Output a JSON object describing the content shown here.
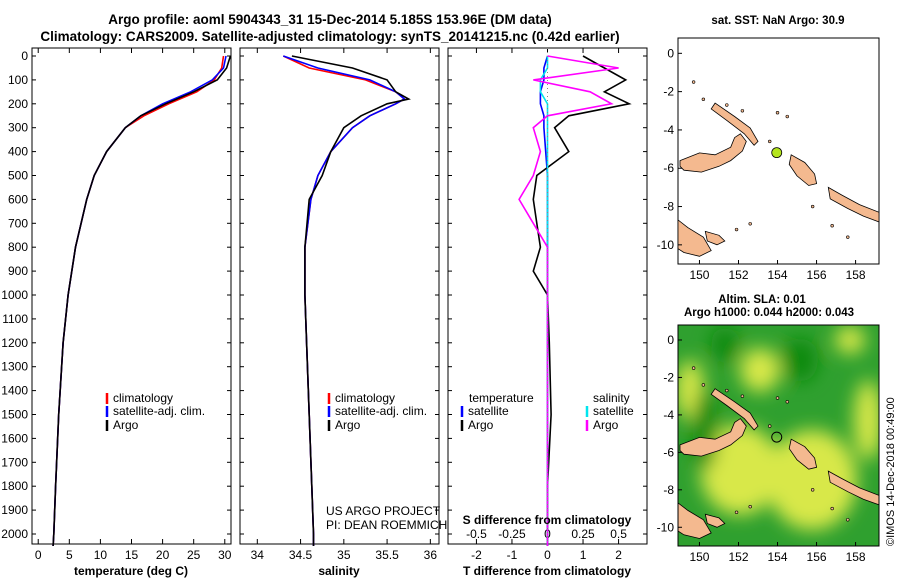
{
  "figure": {
    "title_line1": "Argo profile: aoml 5904343_31 15-Dec-2014 5.185S 153.96E (DM data)",
    "title_line2": "Climatology: CARS2009. Satellite-adjusted climatology: synTS_20141215.nc (0.42d earlier)",
    "credit": "©IMOS 14-Dec-2018 00:49:00",
    "project_line1": "US ARGO PROJECT",
    "project_line2": "PI: DEAN ROEMMICH"
  },
  "colors": {
    "climatology": "#ff0000",
    "satellite": "#0000ff",
    "argo": "#000000",
    "sat_salinity": "#00e5ee",
    "argo_salinity": "#ff00ff",
    "land": "#f4b98f",
    "sla_green": "#2fa02f",
    "sla_yellow": "#d8e84a",
    "marker": "#b4e51e"
  },
  "legends": {
    "temp": [
      "climatology",
      "satellite-adj. clim.",
      "Argo"
    ],
    "sal": [
      "climatology",
      "satellite-adj. clim.",
      "Argo"
    ],
    "diff_t_head": "temperature",
    "diff_s_head": "salinity",
    "diff_t": [
      "satellite",
      "Argo"
    ],
    "diff_s": [
      "satellite",
      "Argo"
    ]
  },
  "maps": {
    "top_title": "sat. SST: NaN Argo: 30.9",
    "bottom_title1": "Altim. SLA: 0.01",
    "bottom_title2": "Argo h1000: 0.044 h2000: 0.043",
    "lon_ticks": [
      "150",
      "152",
      "154",
      "156",
      "158"
    ],
    "lat_ticks": [
      "0",
      "-2",
      "-4",
      "-6",
      "-8",
      "-10"
    ],
    "profile_location": {
      "lon": 153.96,
      "lat": -5.185
    }
  },
  "chart_data": [
    {
      "type": "line",
      "name": "temperature",
      "xlabel": "temperature (deg C)",
      "ylabel": "",
      "xlim": [
        -1,
        31
      ],
      "ylim": [
        2100,
        0
      ],
      "x_ticks": [
        "0",
        "5",
        "10",
        "15",
        "20",
        "25",
        "30"
      ],
      "y_ticks": [
        "0",
        "100",
        "200",
        "300",
        "400",
        "500",
        "600",
        "700",
        "800",
        "900",
        "1000",
        "1100",
        "1200",
        "1300",
        "1400",
        "1500",
        "1600",
        "1700",
        "1800",
        "1900",
        "2000"
      ],
      "depth": [
        0,
        50,
        100,
        150,
        200,
        250,
        300,
        400,
        500,
        600,
        800,
        1000,
        1200,
        1500,
        1800,
        2000,
        2050
      ],
      "series": [
        {
          "name": "climatology",
          "values": [
            29.8,
            29.5,
            28.3,
            25.5,
            21.0,
            17.0,
            14.0,
            11.0,
            9.0,
            7.8,
            6.0,
            4.8,
            4.0,
            3.3,
            2.8,
            2.5,
            2.4
          ]
        },
        {
          "name": "satellite-adj. clim.",
          "values": [
            30.2,
            29.8,
            28.0,
            24.5,
            20.0,
            16.5,
            14.0,
            11.0,
            9.0,
            7.8,
            6.0,
            4.8,
            4.0,
            3.3,
            2.8,
            2.5,
            2.4
          ]
        },
        {
          "name": "Argo",
          "values": [
            30.9,
            30.3,
            28.8,
            25.0,
            20.5,
            16.5,
            14.0,
            11.0,
            9.0,
            7.8,
            6.0,
            4.8,
            4.0,
            3.3,
            2.8,
            2.5,
            2.4
          ]
        }
      ]
    },
    {
      "type": "line",
      "name": "salinity",
      "xlabel": "salinity",
      "ylabel": "",
      "xlim": [
        33.8,
        36.1
      ],
      "ylim": [
        2100,
        0
      ],
      "x_ticks": [
        "34",
        "34.5",
        "35",
        "35.5",
        "36"
      ],
      "depth": [
        0,
        50,
        100,
        150,
        180,
        200,
        250,
        300,
        400,
        500,
        600,
        800,
        1000,
        1200,
        1500,
        1800,
        2000,
        2050
      ],
      "series": [
        {
          "name": "climatology",
          "values": [
            34.3,
            34.6,
            35.25,
            35.6,
            35.7,
            35.6,
            35.3,
            35.1,
            34.85,
            34.7,
            34.62,
            34.55,
            34.55,
            34.57,
            34.6,
            34.63,
            34.65,
            34.65
          ]
        },
        {
          "name": "satellite-adj. clim.",
          "values": [
            34.3,
            34.7,
            35.3,
            35.6,
            35.7,
            35.6,
            35.3,
            35.1,
            34.85,
            34.7,
            34.62,
            34.55,
            34.55,
            34.57,
            34.6,
            34.63,
            34.65,
            34.65
          ]
        },
        {
          "name": "Argo",
          "values": [
            34.4,
            35.1,
            35.5,
            35.6,
            35.75,
            35.5,
            35.2,
            35.0,
            34.85,
            34.75,
            34.6,
            34.55,
            34.55,
            34.57,
            34.6,
            34.63,
            34.65,
            34.65
          ]
        }
      ]
    },
    {
      "type": "line",
      "name": "differences",
      "xlabel": "T difference from climatology",
      "x2label": "S difference from climatology",
      "xlim": [
        -2.8,
        2.8
      ],
      "ylim": [
        2100,
        0
      ],
      "x_ticks": [
        "-2",
        "-1",
        "0",
        "1",
        "2"
      ],
      "x2_ticks": [
        "-0.5",
        "-0.25",
        "0",
        "0.25",
        "0.5"
      ],
      "depth": [
        0,
        50,
        100,
        150,
        200,
        250,
        300,
        400,
        500,
        600,
        700,
        800,
        900,
        1000,
        1200,
        1500,
        1800,
        2000,
        2050
      ],
      "series": [
        {
          "name": "T satellite",
          "values": [
            0.0,
            -0.1,
            -0.1,
            -0.2,
            -0.2,
            -0.1,
            -0.1,
            -0.05,
            0.0,
            0.0,
            0.0,
            0.0,
            0.0,
            0.0,
            0.0,
            0.0,
            0.0,
            0.0,
            0.0
          ]
        },
        {
          "name": "T Argo",
          "values": [
            1.0,
            1.6,
            2.2,
            1.6,
            2.3,
            0.6,
            0.2,
            0.6,
            -0.3,
            -0.4,
            -0.3,
            -0.2,
            -0.4,
            0.0,
            0.05,
            0.1,
            0.0,
            0.0,
            0.0
          ]
        },
        {
          "name": "S satellite",
          "values": [
            0.0,
            0.0,
            -0.05,
            -0.05,
            0.0,
            0.0,
            0.0,
            0.0,
            0.0,
            0.0,
            0.0,
            0.0,
            0.0,
            0.0,
            0.0,
            0.0,
            0.0,
            0.0,
            0.0
          ]
        },
        {
          "name": "S Argo",
          "values": [
            0.0,
            0.5,
            -0.1,
            0.3,
            0.45,
            0.0,
            -0.1,
            -0.05,
            -0.1,
            -0.2,
            -0.1,
            0.0,
            0.0,
            0.0,
            0.0,
            0.0,
            0.0,
            0.0,
            0.0
          ]
        }
      ]
    }
  ]
}
